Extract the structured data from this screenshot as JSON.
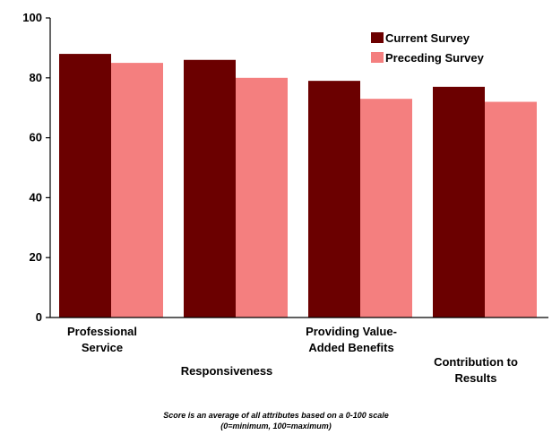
{
  "chart_data": {
    "type": "bar",
    "categories": [
      [
        "Professional",
        "Service"
      ],
      [
        "Responsiveness"
      ],
      [
        "Providing Value-",
        "Added Benefits"
      ],
      [
        "Contribution to",
        "Results"
      ]
    ],
    "series": [
      {
        "name": "Current Survey",
        "color": "#6b0000",
        "values": [
          88,
          86,
          79,
          77
        ]
      },
      {
        "name": "Preceding Survey",
        "color": "#f47f7f",
        "values": [
          85,
          80,
          73,
          72
        ]
      }
    ],
    "ylim": [
      0,
      100
    ],
    "yticks": [
      0,
      20,
      40,
      60,
      80,
      100
    ],
    "grid": false,
    "legend": "top-right"
  },
  "footnote": {
    "line1": "Score is an average of all attributes based on a 0-100 scale",
    "line2": "(0=minimum, 100=maximum)"
  }
}
